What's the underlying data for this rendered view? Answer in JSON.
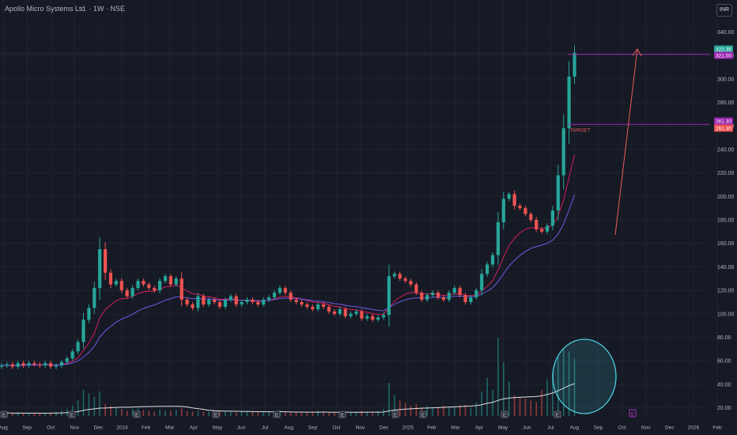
{
  "header": {
    "title": "Apollo Micro Systems Ltd. · 1W · NSE",
    "currency": "INR"
  },
  "colors": {
    "background": "#161a25",
    "up": "#26a69a",
    "down": "#ef5350",
    "ema_fast": "#e91e63",
    "ema_slow": "#7b61ff",
    "volume_ma": "#e0e0e0",
    "price_line": "#9c27b0",
    "highlight_circle": "#4dd0e1",
    "arrow": "#f05a5a",
    "grid": "#1f2431",
    "axis_text": "#b2b5be"
  },
  "chart_data": {
    "type": "candlestick",
    "title": "Apollo Micro Systems Ltd. · 1W · NSE",
    "ylim": [
      15,
      345
    ],
    "y_ticks": [
      20,
      40,
      60,
      80,
      100,
      120,
      140,
      160,
      180,
      200,
      220,
      240,
      260,
      280,
      300,
      320,
      340
    ],
    "x_ticks": [
      "Aug",
      "Sep",
      "Oct",
      "Nov",
      "Dec",
      "2024",
      "Feb",
      "Mar",
      "Apr",
      "May",
      "Jun",
      "Jul",
      "Aug",
      "Sep",
      "Oct",
      "Nov",
      "Dec",
      "2025",
      "Feb",
      "Mar",
      "Apr",
      "May",
      "Jun",
      "Jul",
      "Aug",
      "Sep",
      "Oct",
      "Nov",
      "Dec",
      "2026",
      "Feb"
    ],
    "price_labels": [
      {
        "value": 322.35,
        "text": "322.35",
        "color": "#26a69a"
      },
      {
        "value": 321.0,
        "text": "321.00",
        "color": "#9c27b0"
      },
      {
        "value": 261.3,
        "text": "261.30",
        "color": "#9c27b0"
      },
      {
        "value": 261.3,
        "text": "261.30",
        "color": "#ef5350"
      }
    ],
    "horizontal_lines": [
      321.0,
      261.3
    ],
    "annotation": "TARGET",
    "earnings_markers": [
      "E",
      "E",
      "E",
      "E",
      "E",
      "E",
      "E",
      "E",
      "E",
      "E"
    ],
    "upcoming_marker": "E",
    "closes": [
      56,
      57,
      55,
      58,
      56,
      58,
      57,
      56,
      58,
      55,
      56,
      59,
      62,
      68,
      76,
      95,
      105,
      122,
      155,
      135,
      125,
      128,
      120,
      115,
      122,
      128,
      125,
      122,
      120,
      128,
      132,
      125,
      130,
      112,
      108,
      105,
      115,
      108,
      112,
      110,
      106,
      112,
      115,
      108,
      110,
      112,
      110,
      108,
      112,
      114,
      118,
      122,
      118,
      112,
      110,
      108,
      106,
      104,
      108,
      106,
      102,
      100,
      104,
      98,
      100,
      102,
      96,
      98,
      95,
      97,
      99,
      132,
      134,
      130,
      128,
      125,
      118,
      112,
      116,
      118,
      114,
      112,
      118,
      122,
      116,
      110,
      114,
      120,
      134,
      142,
      150,
      178,
      198,
      202,
      192,
      190,
      185,
      180,
      172,
      170,
      175,
      188,
      218,
      258,
      302,
      322.35
    ],
    "volume": [
      4,
      4,
      3,
      4,
      3,
      4,
      4,
      3,
      3,
      4,
      5,
      6,
      8,
      12,
      18,
      30,
      26,
      22,
      28,
      14,
      12,
      10,
      8,
      6,
      8,
      9,
      7,
      6,
      5,
      7,
      6,
      6,
      7,
      9,
      6,
      5,
      6,
      5,
      5,
      4,
      5,
      6,
      5,
      4,
      5,
      6,
      5,
      4,
      5,
      5,
      6,
      7,
      5,
      4,
      4,
      4,
      5,
      4,
      6,
      5,
      4,
      4,
      5,
      5,
      4,
      5,
      6,
      5,
      5,
      6,
      8,
      38,
      24,
      18,
      15,
      12,
      14,
      10,
      12,
      9,
      10,
      12,
      11,
      10,
      12,
      13,
      10,
      16,
      28,
      44,
      30,
      90,
      62,
      40,
      24,
      22,
      20,
      18,
      16,
      30,
      42,
      50,
      68,
      78,
      74,
      66
    ]
  }
}
